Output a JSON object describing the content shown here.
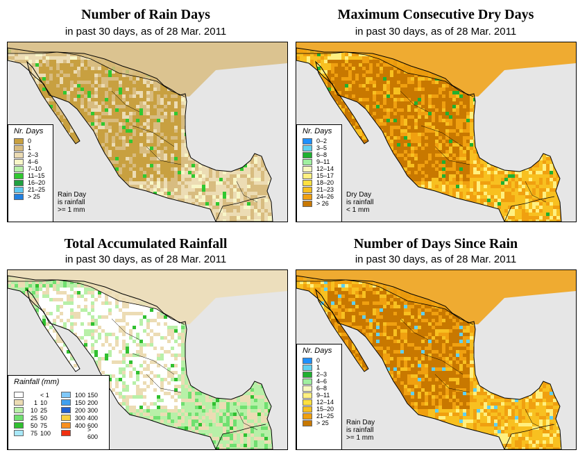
{
  "panels": [
    {
      "title": "Number of Rain Days",
      "subtitle": "in past 30 days, as of  28 Mar. 2011",
      "legend_title": "Nr. Days",
      "legend": [
        {
          "label": "0",
          "color": "#c8a040"
        },
        {
          "label": "1",
          "color": "#d8bc80"
        },
        {
          "label": "2–3",
          "color": "#ecdcb4"
        },
        {
          "label": "4–6",
          "color": "#f8f6c8"
        },
        {
          "label": "7–10",
          "color": "#b8f0a8"
        },
        {
          "label": "11–15",
          "color": "#30c830"
        },
        {
          "label": "16–20",
          "color": "#20a040"
        },
        {
          "label": "21–25",
          "color": "#60c8f0"
        },
        {
          "label": "> 25",
          "color": "#2080e0"
        }
      ],
      "note": [
        "Rain Day",
        "is rainfall",
        ">= 1 mm"
      ],
      "colors": {
        "land": "#c8a040",
        "land2": "#d8bc80",
        "land3": "#ecdcb4",
        "accent": "#30c830",
        "accent2": "#f8f6c8",
        "north": "#b8f0a8"
      }
    },
    {
      "title": "Maximum Consecutive Dry Days",
      "subtitle": "in past 30 days, as of  28 Mar. 2011",
      "legend_title": "Nr. Days",
      "legend": [
        {
          "label": "0–2",
          "color": "#1e90ff"
        },
        {
          "label": "3–5",
          "color": "#60d0f0"
        },
        {
          "label": "6–8",
          "color": "#20b030"
        },
        {
          "label": "9–11",
          "color": "#a0f0a0"
        },
        {
          "label": "12–14",
          "color": "#f8f8c0"
        },
        {
          "label": "15–17",
          "color": "#fff080"
        },
        {
          "label": "18–20",
          "color": "#ffe040"
        },
        {
          "label": "21–23",
          "color": "#f8c020"
        },
        {
          "label": "24–26",
          "color": "#f0a010"
        },
        {
          "label": "> 26",
          "color": "#c87800"
        }
      ],
      "note": [
        "Dry Day",
        "is rainfall",
        "< 1 mm"
      ],
      "colors": {
        "land": "#c87800",
        "land2": "#f0a010",
        "land3": "#f8c020",
        "accent": "#20b030",
        "accent2": "#fff080",
        "north": "#a0f0a0"
      }
    },
    {
      "title": "Total Accumulated Rainfall",
      "subtitle": "in past 30 days, as of  28 Mar. 2011",
      "legend_title": "Rainfall (mm)",
      "legend_left": [
        {
          "a": "",
          "b": "< 1",
          "color": "#ffffff"
        },
        {
          "a": "1",
          "b": "10",
          "color": "#ecdcb4"
        },
        {
          "a": "10",
          "b": "25",
          "color": "#b8f0a8"
        },
        {
          "a": "25",
          "b": "50",
          "color": "#70e070"
        },
        {
          "a": "50",
          "b": "75",
          "color": "#30c030"
        },
        {
          "a": "75",
          "b": "100",
          "color": "#a8e8f8"
        }
      ],
      "legend_right": [
        {
          "a": "100",
          "b": "150",
          "color": "#80c8f8"
        },
        {
          "a": "150",
          "b": "200",
          "color": "#40a0f0"
        },
        {
          "a": "200",
          "b": "300",
          "color": "#2060d0"
        },
        {
          "a": "300",
          "b": "400",
          "color": "#f8d040"
        },
        {
          "a": "400",
          "b": "600",
          "color": "#f89020"
        },
        {
          "a": "",
          "b": "> 600",
          "color": "#f03010"
        }
      ],
      "colors": {
        "land": "#ffffff",
        "land2": "#ecdcb4",
        "land3": "#b8f0a8",
        "accent": "#30c030",
        "accent2": "#70e070",
        "north": "#2060d0"
      }
    },
    {
      "title": "Number of Days Since Rain",
      "subtitle": "in past 30 days, as of  28 Mar. 2011",
      "legend_title": "Nr. Days",
      "legend": [
        {
          "label": "0",
          "color": "#1e90ff"
        },
        {
          "label": "1",
          "color": "#60d0f0"
        },
        {
          "label": "2–3",
          "color": "#20b030"
        },
        {
          "label": "4–6",
          "color": "#a0f0a0"
        },
        {
          "label": "6–8",
          "color": "#f8f8c0"
        },
        {
          "label": "9–11",
          "color": "#fff080"
        },
        {
          "label": "12–14",
          "color": "#ffe040"
        },
        {
          "label": "15–20",
          "color": "#f8c020"
        },
        {
          "label": "21–25",
          "color": "#f0a010"
        },
        {
          "label": "> 25",
          "color": "#c87800"
        }
      ],
      "note": [
        "Rain Day",
        "is rainfall",
        ">= 1 mm"
      ],
      "colors": {
        "land": "#c87800",
        "land2": "#f0a010",
        "land3": "#f8c020",
        "accent": "#60d0f0",
        "accent2": "#fff080",
        "north": "#60d0f0"
      }
    }
  ],
  "ocean_color": "#e6e6e6",
  "border_color": "#000000"
}
